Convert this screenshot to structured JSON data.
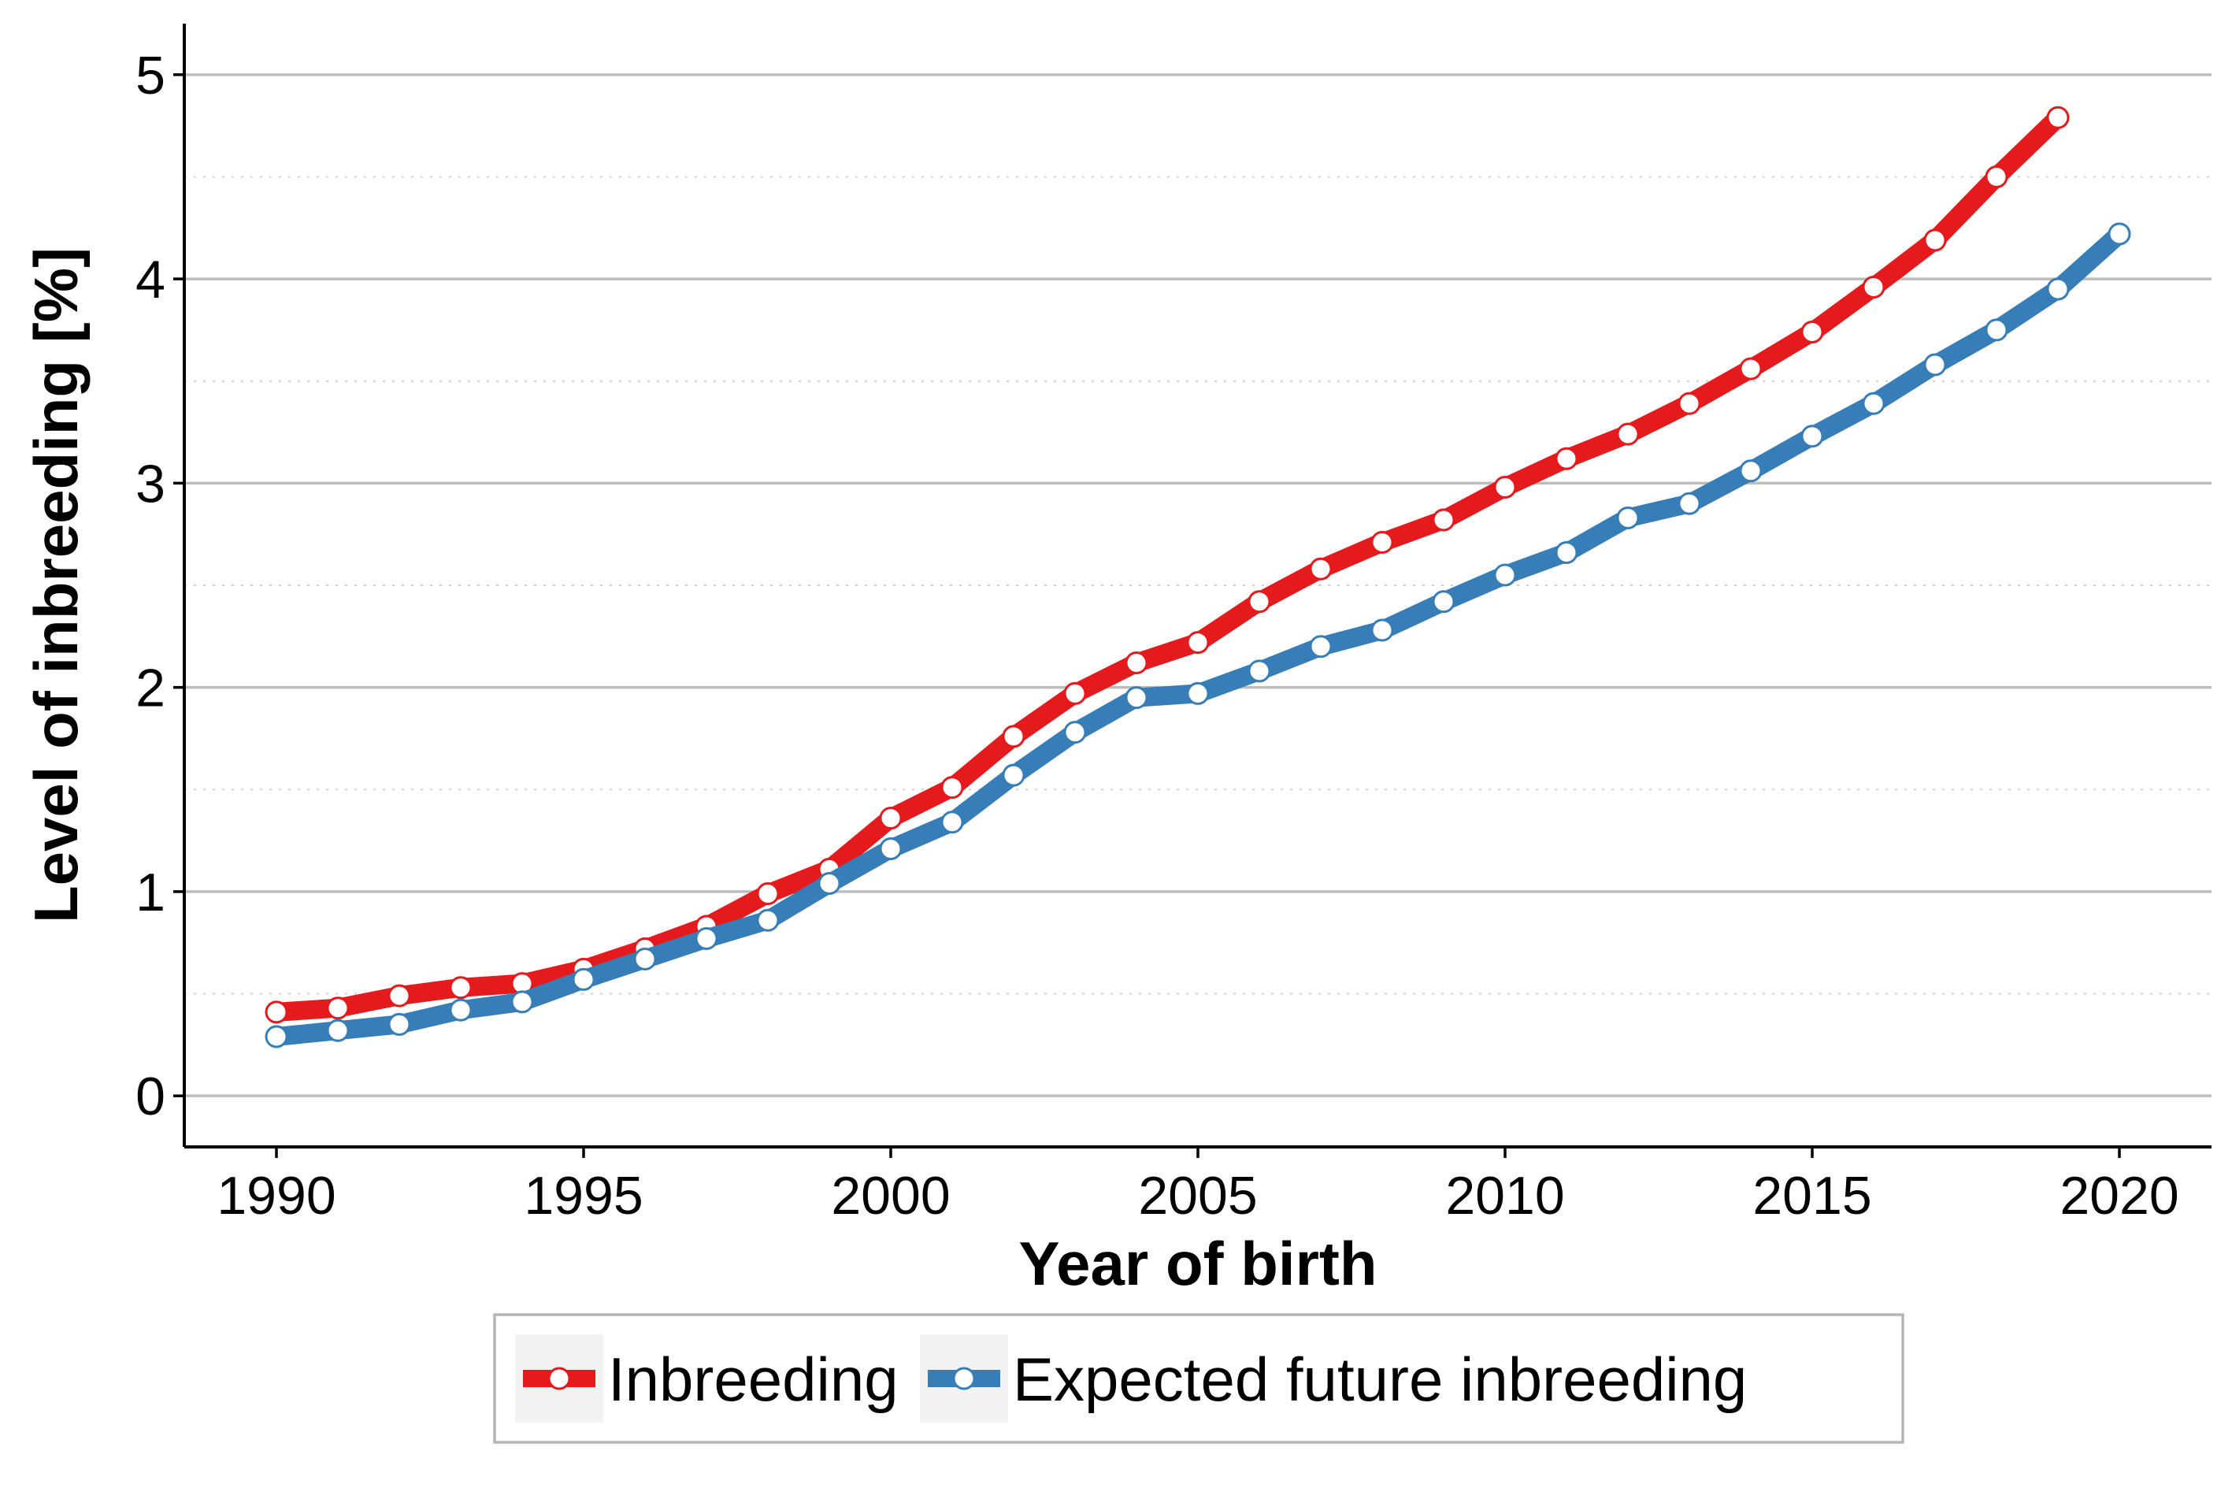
{
  "chart_data": {
    "type": "line",
    "title": "",
    "xlabel": "Year of birth",
    "ylabel": "Level of inbreeding [%]",
    "xlim": [
      1988.5,
      2021.5
    ],
    "ylim": [
      -0.25,
      5.25
    ],
    "xticks": [
      1990,
      1995,
      2000,
      2005,
      2010,
      2015,
      2020
    ],
    "yticks": [
      0,
      1,
      2,
      3,
      4,
      5
    ],
    "grid": true,
    "legend_position": "bottom",
    "series": [
      {
        "name": "Inbreeding",
        "color": "#e41a1c",
        "x": [
          1990,
          1991,
          1992,
          1993,
          1994,
          1995,
          1996,
          1997,
          1998,
          1999,
          2000,
          2001,
          2002,
          2003,
          2004,
          2005,
          2006,
          2007,
          2008,
          2009,
          2010,
          2011,
          2012,
          2013,
          2014,
          2015,
          2016,
          2017,
          2018,
          2019
        ],
        "values": [
          0.41,
          0.43,
          0.49,
          0.53,
          0.55,
          0.62,
          0.72,
          0.83,
          0.99,
          1.11,
          1.36,
          1.51,
          1.76,
          1.97,
          2.12,
          2.22,
          2.42,
          2.58,
          2.71,
          2.82,
          2.98,
          3.12,
          3.24,
          3.39,
          3.56,
          3.74,
          3.96,
          4.19,
          4.5,
          4.79
        ]
      },
      {
        "name": "Expected future inbreeding",
        "color": "#377eb8",
        "x": [
          1990,
          1991,
          1992,
          1993,
          1994,
          1995,
          1996,
          1997,
          1998,
          1999,
          2000,
          2001,
          2002,
          2003,
          2004,
          2005,
          2006,
          2007,
          2008,
          2009,
          2010,
          2011,
          2012,
          2013,
          2014,
          2015,
          2016,
          2017,
          2018,
          2019,
          2020
        ],
        "values": [
          0.29,
          0.32,
          0.35,
          0.42,
          0.46,
          0.57,
          0.67,
          0.77,
          0.86,
          1.04,
          1.21,
          1.34,
          1.57,
          1.78,
          1.95,
          1.97,
          2.08,
          2.2,
          2.28,
          2.42,
          2.55,
          2.66,
          2.83,
          2.9,
          3.06,
          3.23,
          3.39,
          3.58,
          3.75,
          3.95,
          4.22
        ]
      }
    ]
  }
}
